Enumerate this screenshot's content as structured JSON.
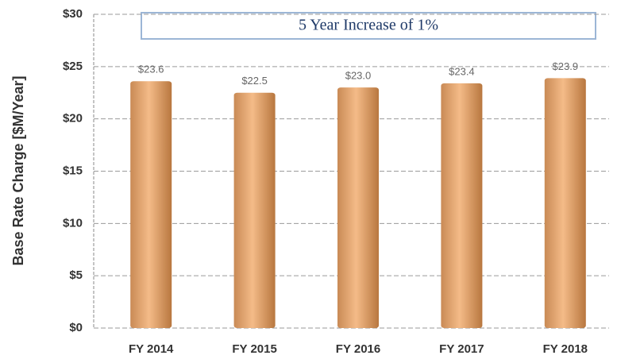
{
  "chart_data": {
    "type": "bar",
    "annotation": "5 Year Increase of 1%",
    "y_label": "Base Rate Charge [$M/Year]",
    "categories": [
      "FY 2014",
      "FY 2015",
      "FY 2016",
      "FY 2017",
      "FY 2018"
    ],
    "values": [
      23.6,
      22.5,
      23.0,
      23.4,
      23.9
    ],
    "value_labels": [
      "$23.6",
      "$22.5",
      "$23.0",
      "$23.4",
      "$23.9"
    ],
    "color": "#f4bb88",
    "ylim": [
      0,
      30
    ],
    "yticks": [
      {
        "value": 0,
        "label": "$0"
      },
      {
        "value": 5,
        "label": "$5"
      },
      {
        "value": 10,
        "label": "$10"
      },
      {
        "value": 15,
        "label": "$15"
      },
      {
        "value": 20,
        "label": "$20"
      },
      {
        "value": 25,
        "label": "$25"
      },
      {
        "value": 30,
        "label": "$30"
      }
    ],
    "grid": true
  }
}
